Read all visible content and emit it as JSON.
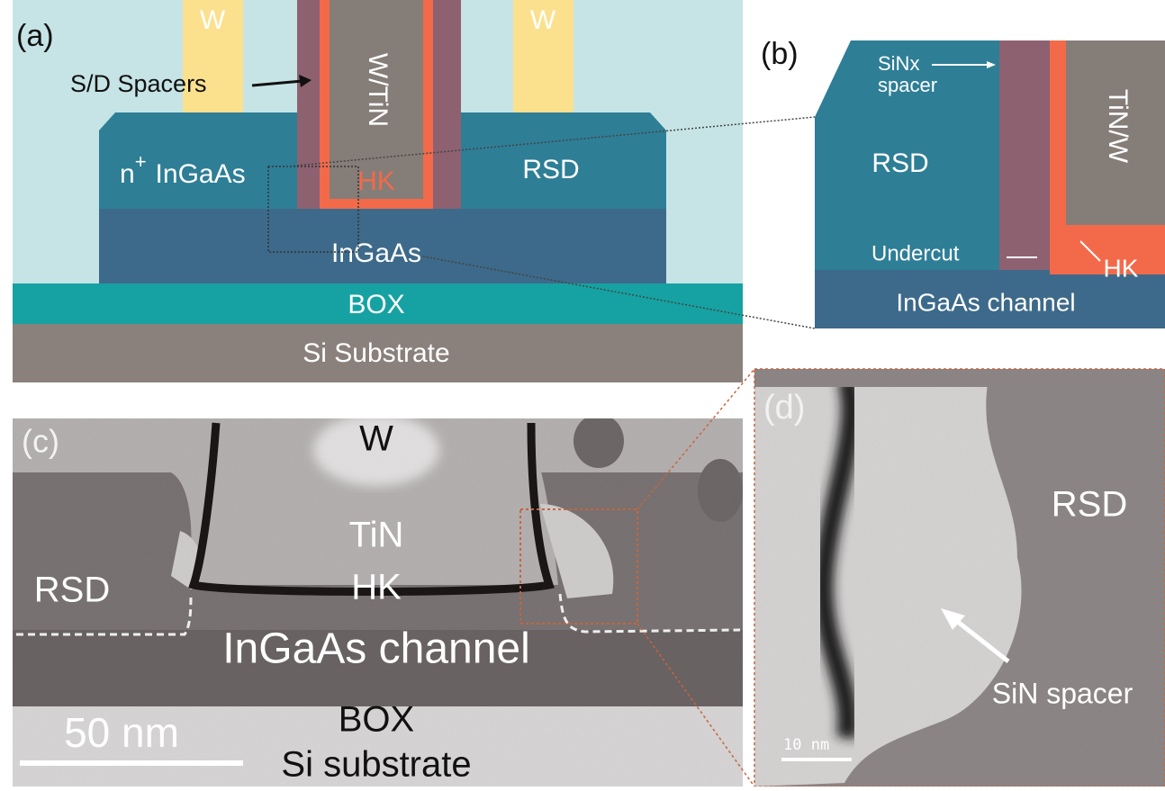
{
  "panel_a": {
    "label": "(a)",
    "w_left": "W",
    "w_right": "W",
    "spacers": "S/D Spacers",
    "gate": "W/TiN",
    "hk": "HK",
    "n_base": "n",
    "n_sup": "+",
    "n_rest": "InGaAs",
    "rsd": "RSD",
    "ingaas": "InGaAs",
    "box": "BOX",
    "substrate": "Si Substrate"
  },
  "panel_b": {
    "label": "(b)",
    "sinx": "SiNx",
    "spacer": "spacer",
    "gate": "TiN/W",
    "rsd": "RSD",
    "undercut": "Undercut",
    "hk": "HK",
    "channel": "InGaAs channel"
  },
  "panel_c": {
    "label": "(c)",
    "w": "W",
    "tin": "TiN",
    "hk": "HK",
    "rsd": "RSD",
    "channel": "InGaAs channel",
    "box": "BOX",
    "substrate": "Si substrate",
    "scale": "50 nm"
  },
  "panel_d": {
    "label": "(d)",
    "rsd": "RSD",
    "spacer": "SiN spacer",
    "scale": "10 nm"
  }
}
